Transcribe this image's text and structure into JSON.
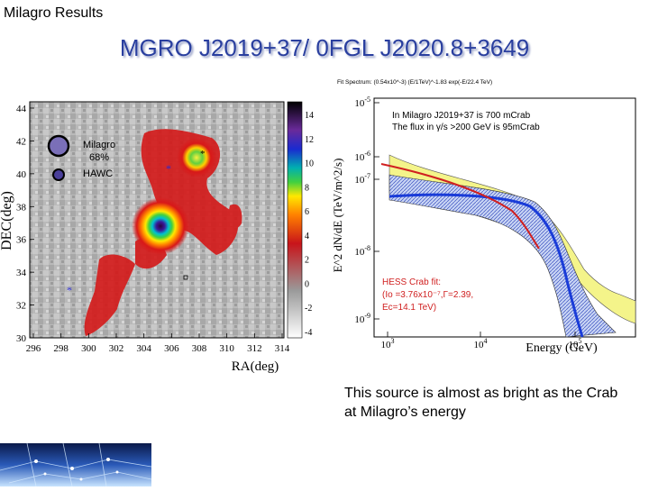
{
  "header": {
    "label": "Milagro Results"
  },
  "title": "MGRO J2019+37/ 0FGL J2020.8+3649",
  "skymap": {
    "y_axis_label": "DEC(deg)",
    "x_axis_label": "RA(deg)",
    "y_ticks": [
      "44",
      "42",
      "40",
      "38",
      "36",
      "34",
      "32",
      "30"
    ],
    "x_ticks": [
      "296",
      "298",
      "300",
      "302",
      "304",
      "306",
      "308",
      "310",
      "312",
      "314"
    ],
    "colorbar_ticks": [
      "14",
      "12",
      "10",
      "8",
      "6",
      "4",
      "2",
      "0",
      "-2",
      "-4"
    ],
    "legend": {
      "milagro": "Milagro",
      "percent": "68%",
      "hawc": "HAWC"
    },
    "colors": {
      "milagro_circle": "#7a6fb8",
      "hawc_circle": "#4a3f9a",
      "marker": "#2a2ad0"
    }
  },
  "spectrum": {
    "fit_header": "Fit Spectrum: (0.54x10^-3) (E/1TeV)^-1.83 exp(-E/22.4 TeV)",
    "y_axis_label": "E^2 dN/dE (TeV/m^2/s)",
    "x_axis_label": "Energy (GeV)",
    "y_ticks": [
      {
        "base": "10",
        "exp": "-5"
      },
      {
        "base": "10",
        "exp": "-6"
      },
      {
        "base": "10",
        "exp": "-7"
      },
      {
        "base": "10",
        "exp": "-8"
      },
      {
        "base": "10",
        "exp": "-9"
      }
    ],
    "x_ticks": [
      {
        "base": "10",
        "exp": "3"
      },
      {
        "base": "10",
        "exp": "4"
      },
      {
        "base": "10",
        "exp": "5"
      }
    ],
    "note_line1": "In Milagro J2019+37 is 700 mCrab",
    "note_line2": "The flux in γ/s >200 GeV is 95mCrab",
    "hess_line1": "HESS Crab fit:",
    "hess_line2": "(Io =3.76x10⁻⁷,Γ=2.39,",
    "hess_line3": "Ec=14.1 TeV)",
    "colors": {
      "fit_curve": "#1a3cd8",
      "hess_curve": "#d02020",
      "band_outer": "#f4f48a",
      "band_inner": "#9ab0e8"
    }
  },
  "caption": "This source is almost as bright as the Crab at Milagro’s energy"
}
